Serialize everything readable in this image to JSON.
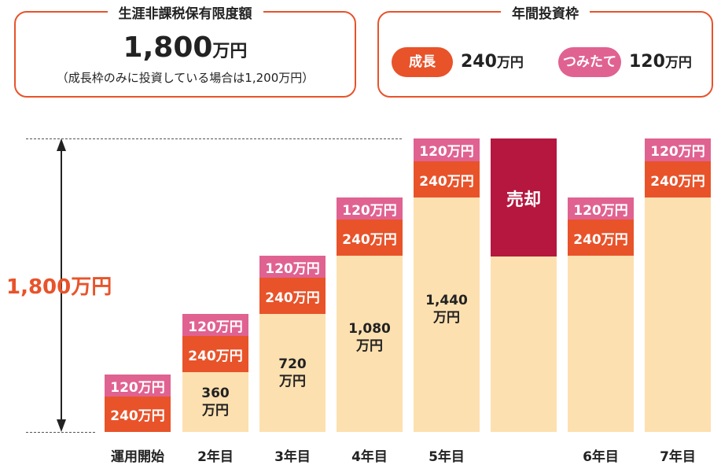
{
  "limit_box": {
    "title": "生涯非課税保有限度額",
    "value": "1,800",
    "unit": "万円",
    "note": "（成長枠のみに投資している場合は1,200万円）"
  },
  "frame_box": {
    "title": "年間投資枠",
    "growth_label": "成長",
    "growth_value": "240",
    "growth_unit": "万円",
    "tsumitate_label": "つみたて",
    "tsumitate_value": "120",
    "tsumitate_unit": "万円"
  },
  "y_label": "1,800万円",
  "segments": {
    "tsumitate": "120万円",
    "growth": "240万円",
    "sold": "売却"
  },
  "columns": [
    {
      "label": "運用開始",
      "base_num": "",
      "base_unit": ""
    },
    {
      "label": "2年目",
      "base_num": "360",
      "base_unit": "万円"
    },
    {
      "label": "3年目",
      "base_num": "720",
      "base_unit": "万円"
    },
    {
      "label": "4年目",
      "base_num": "1,080",
      "base_unit": "万円"
    },
    {
      "label": "5年目",
      "base_num": "1,440",
      "base_unit": "万円"
    },
    {
      "label": "",
      "base_num": "",
      "base_unit": ""
    },
    {
      "label": "6年目",
      "base_num": "",
      "base_unit": ""
    },
    {
      "label": "7年目",
      "base_num": "",
      "base_unit": ""
    }
  ],
  "colors": {
    "accent": "#e8532a",
    "tsumitate": "#e06291",
    "base": "#fde0b0",
    "sold": "#b5173f"
  }
}
